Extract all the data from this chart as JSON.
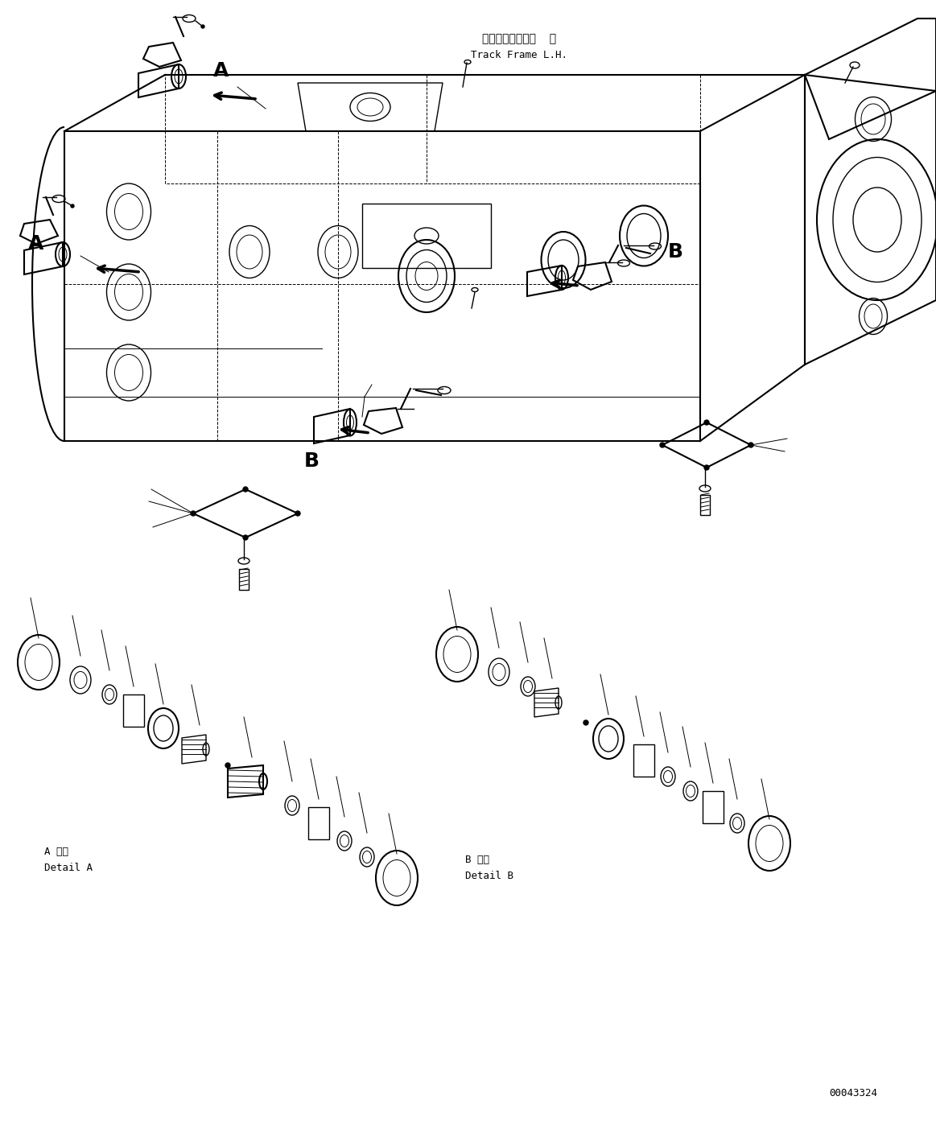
{
  "title_jp": "トラックフレーム  左",
  "title_en": "Track Frame L.H.",
  "detail_a_jp": "A 詳細",
  "detail_a_en": "Detail A",
  "detail_b_jp": "B 詳細",
  "detail_b_en": "Detail B",
  "label_a": "A",
  "label_b": "B",
  "part_number": "00043324",
  "bg_color": "#ffffff",
  "line_color": "#000000",
  "font_size_title": 10,
  "font_size_label": 16,
  "font_size_detail": 9,
  "font_size_partnum": 8
}
